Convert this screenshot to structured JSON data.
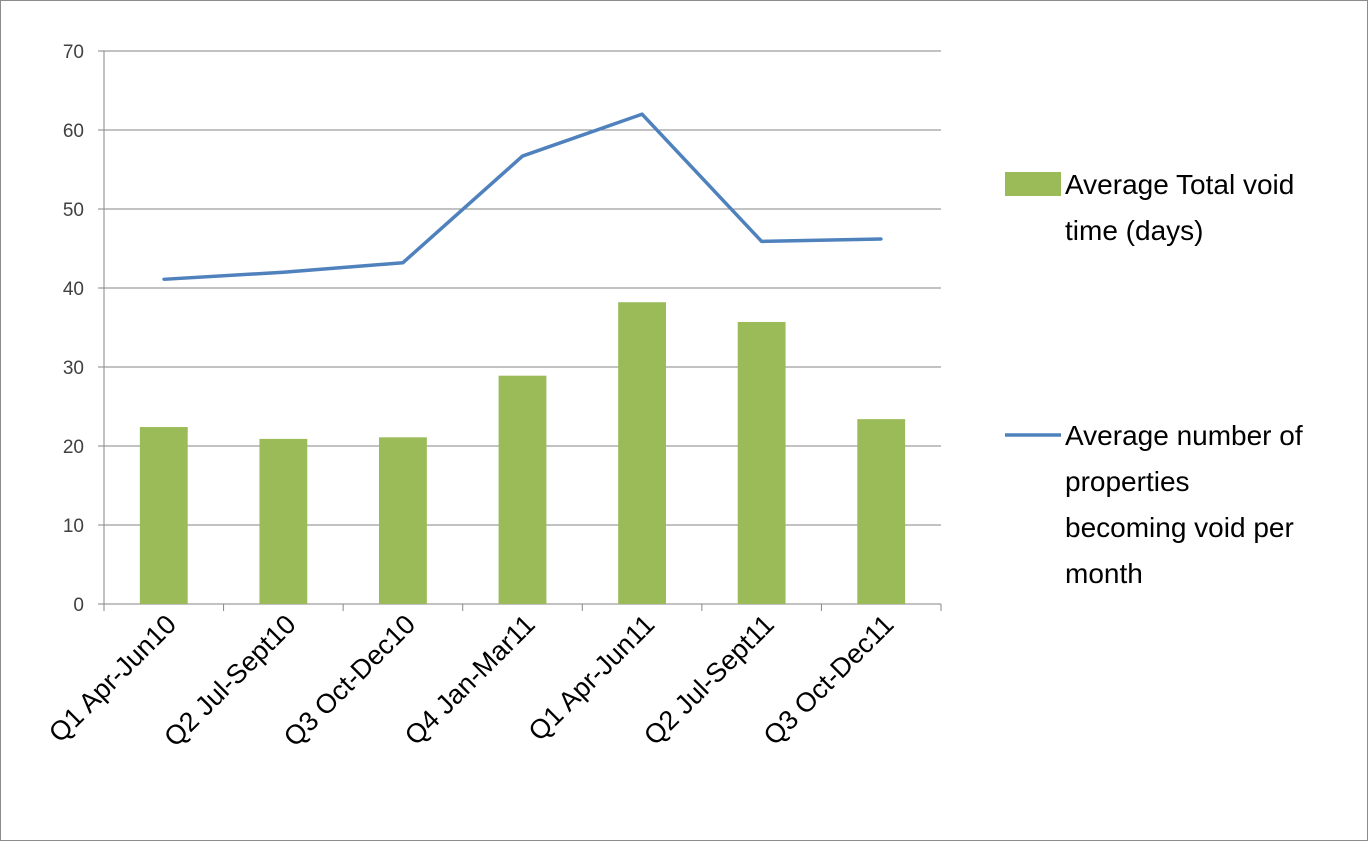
{
  "chart_data": {
    "type": "bar",
    "categories": [
      "Q1 Apr-Jun10",
      "Q2 Jul-Sept10",
      "Q3 Oct-Dec10",
      "Q4 Jan-Mar11",
      "Q1 Apr-Jun11",
      "Q2 Jul-Sept11",
      "Q3 Oct-Dec11"
    ],
    "series": [
      {
        "name": "Average Total void time (days)",
        "kind": "bar",
        "color": "#9bbb59",
        "values": [
          22.4,
          20.9,
          21.1,
          28.9,
          38.2,
          35.7,
          23.4
        ]
      },
      {
        "name": "Average number of properties becoming void per month",
        "kind": "line",
        "color": "#4f81bd",
        "values": [
          41.1,
          42.0,
          43.2,
          56.7,
          62.0,
          45.9,
          46.2
        ]
      }
    ],
    "title": "",
    "xlabel": "",
    "ylabel": "",
    "ylim": [
      0,
      70
    ],
    "yticks": [
      0,
      10,
      20,
      30,
      40,
      50,
      60,
      70
    ],
    "grid": true,
    "legend_position": "right"
  }
}
